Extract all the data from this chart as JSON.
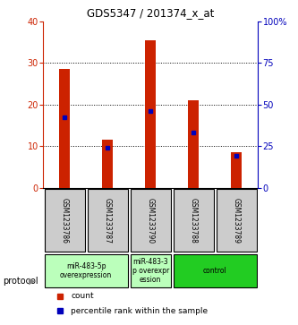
{
  "title": "GDS5347 / 201374_x_at",
  "samples": [
    "GSM1233786",
    "GSM1233787",
    "GSM1233790",
    "GSM1233788",
    "GSM1233789"
  ],
  "counts": [
    28.5,
    11.5,
    35.5,
    21,
    8.5
  ],
  "percentile_ranks": [
    42,
    24,
    46,
    33,
    19
  ],
  "ylim_left": [
    0,
    40
  ],
  "ylim_right": [
    0,
    100
  ],
  "yticks_left": [
    0,
    10,
    20,
    30,
    40
  ],
  "yticks_right": [
    0,
    25,
    50,
    75,
    100
  ],
  "ytick_labels_right": [
    "0",
    "25",
    "50",
    "75",
    "100%"
  ],
  "bar_color": "#cc2200",
  "marker_color": "#0000bb",
  "groups": [
    {
      "indices": [
        0,
        1
      ],
      "label": "miR-483-5p\noverexpression",
      "color": "#bbffbb"
    },
    {
      "indices": [
        2
      ],
      "label": "miR-483-3\np overexpr\nession",
      "color": "#bbffbb"
    },
    {
      "indices": [
        3,
        4
      ],
      "label": "control",
      "color": "#22cc22"
    }
  ],
  "protocol_label": "protocol",
  "legend_count_label": "count",
  "legend_pct_label": "percentile rank within the sample",
  "background_color": "#ffffff",
  "label_box_color": "#cccccc",
  "bar_width": 0.25
}
